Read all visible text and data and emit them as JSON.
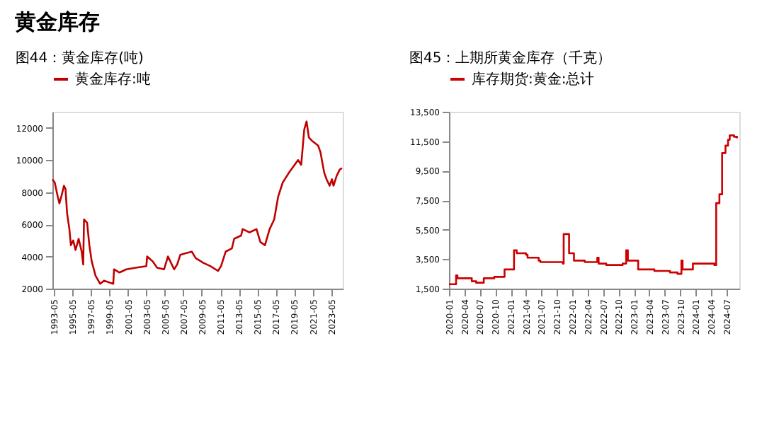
{
  "chart_data": [
    {
      "type": "other",
      "title": "黄金库存"
    },
    {
      "type": "line",
      "title": "图44：黄金库存(吨)",
      "legend": "top",
      "grid": false,
      "line_style": "solid",
      "marker": "none",
      "xlim": [
        "1993-03",
        "2024-08"
      ],
      "ylim": [
        2000,
        13000
      ],
      "xticks": [
        "1993-05",
        "1995-05",
        "1997-05",
        "1999-05",
        "2001-05",
        "2003-05",
        "2005-05",
        "2007-05",
        "2009-05",
        "2011-05",
        "2013-05",
        "2015-05",
        "2017-05",
        "2019-05",
        "2021-05",
        "2023-05"
      ],
      "yticks": [
        2000,
        4000,
        6000,
        8000,
        10000,
        12000
      ],
      "series": [
        {
          "name": "黄金库存:吨",
          "color": "#c00000",
          "x": [
            "1993-03",
            "1993-06",
            "1993-10",
            "1993-12",
            "1994-03",
            "1994-06",
            "1994-08",
            "1994-10",
            "1995-01",
            "1995-03",
            "1995-06",
            "1995-09",
            "1996-01",
            "1996-05",
            "1996-07",
            "1996-08",
            "1996-12",
            "1997-03",
            "1997-06",
            "1997-11",
            "1998-05",
            "1998-10",
            "1999-04",
            "1999-10",
            "1999-11",
            "2000-06",
            "2001-03",
            "2002-03",
            "2003-05",
            "2003-06",
            "2004-01",
            "2004-07",
            "2005-04",
            "2005-09",
            "2006-01",
            "2006-05",
            "2006-09",
            "2007-01",
            "2007-08",
            "2008-04",
            "2008-09",
            "2009-07",
            "2010-04",
            "2011-02",
            "2011-06",
            "2011-12",
            "2012-08",
            "2012-11",
            "2013-08",
            "2013-10",
            "2014-07",
            "2015-04",
            "2015-09",
            "2016-03",
            "2016-09",
            "2017-03",
            "2017-08",
            "2018-02",
            "2018-10",
            "2019-10",
            "2020-02",
            "2020-06",
            "2020-09",
            "2020-12",
            "2021-04",
            "2021-12",
            "2022-03",
            "2022-08",
            "2022-11",
            "2023-03",
            "2023-06",
            "2023-08",
            "2023-12",
            "2024-04",
            "2024-07"
          ],
          "values": [
            8800,
            8600,
            7700,
            7300,
            7800,
            8400,
            8200,
            6700,
            5700,
            4700,
            5000,
            4400,
            5100,
            4300,
            3500,
            6300,
            6100,
            4700,
            3700,
            2800,
            2300,
            2500,
            2400,
            2300,
            3200,
            3000,
            3200,
            3300,
            3400,
            4000,
            3700,
            3300,
            3200,
            4000,
            3600,
            3200,
            3500,
            4100,
            4200,
            4300,
            3900,
            3600,
            3400,
            3100,
            3400,
            4300,
            4500,
            5100,
            5300,
            5700,
            5500,
            5700,
            4900,
            4700,
            5700,
            6300,
            7700,
            8600,
            9200,
            10000,
            9700,
            11900,
            12400,
            11400,
            11200,
            10900,
            10500,
            9200,
            8800,
            8400,
            8800,
            8400,
            9000,
            9400,
            9500
          ]
        }
      ]
    },
    {
      "type": "step",
      "title": "图45：上期所黄金库存（千克）",
      "legend": "top",
      "grid": false,
      "line_style": "solid",
      "marker": "none",
      "xlim": [
        "2020-01-01",
        "2024-09-15"
      ],
      "ylim": [
        1500,
        13500
      ],
      "xticks": [
        "2020-01",
        "2020-04",
        "2020-07",
        "2020-10",
        "2021-01",
        "2021-04",
        "2021-07",
        "2021-10",
        "2022-01",
        "2022-04",
        "2022-07",
        "2022-10",
        "2023-01",
        "2023-04",
        "2023-07",
        "2023-10",
        "2024-01",
        "2024-04",
        "2024-07"
      ],
      "yticks": [
        {
          "value": 1500,
          "label": "1,500"
        },
        {
          "value": 3500,
          "label": "3,500"
        },
        {
          "value": 5500,
          "label": "5,500"
        },
        {
          "value": 7500,
          "label": "7,500"
        },
        {
          "value": 9500,
          "label": "9,500"
        },
        {
          "value": 11500,
          "label": "11,500"
        },
        {
          "value": 13500,
          "label": "13,500"
        }
      ],
      "series": [
        {
          "name": "库存期货:黄金:总计",
          "color": "#cc0000",
          "x": [
            "2020-01-01",
            "2020-02-10",
            "2020-02-12",
            "2020-02-20",
            "2020-05-10",
            "2020-05-15",
            "2020-06-10",
            "2020-07-20",
            "2020-07-25",
            "2020-09-25",
            "2020-11-20",
            "2020-11-25",
            "2021-01-15",
            "2021-01-20",
            "2021-02-05",
            "2021-04-01",
            "2021-04-10",
            "2021-06-15",
            "2021-06-25",
            "2021-11-05",
            "2021-11-10",
            "2021-12-10",
            "2021-12-12",
            "2022-01-10",
            "2022-03-15",
            "2022-05-25",
            "2022-05-28",
            "2022-06-05",
            "2022-07-20",
            "2022-10-25",
            "2022-11-15",
            "2022-11-25",
            "2023-01-20",
            "2023-01-25",
            "2023-05-01",
            "2023-08-01",
            "2023-09-15",
            "2023-10-01",
            "2023-10-08",
            "2023-10-15",
            "2023-12-10",
            "2023-12-15",
            "2024-04-20",
            "2024-05-01",
            "2024-05-20",
            "2024-06-05",
            "2024-06-25",
            "2024-07-10",
            "2024-07-20",
            "2024-08-15",
            "2024-09-01"
          ],
          "values": [
            1800,
            1800,
            2400,
            2200,
            2200,
            2000,
            1900,
            1900,
            2200,
            2300,
            2300,
            2800,
            2800,
            4100,
            3900,
            3800,
            3600,
            3400,
            3300,
            3200,
            5200,
            5200,
            3900,
            3400,
            3300,
            3300,
            3600,
            3200,
            3100,
            3200,
            4100,
            3400,
            3400,
            2800,
            2700,
            2600,
            2500,
            2500,
            3400,
            2800,
            2800,
            3200,
            3100,
            7300,
            7900,
            10700,
            11200,
            11600,
            11900,
            11800,
            11700
          ]
        }
      ]
    }
  ]
}
